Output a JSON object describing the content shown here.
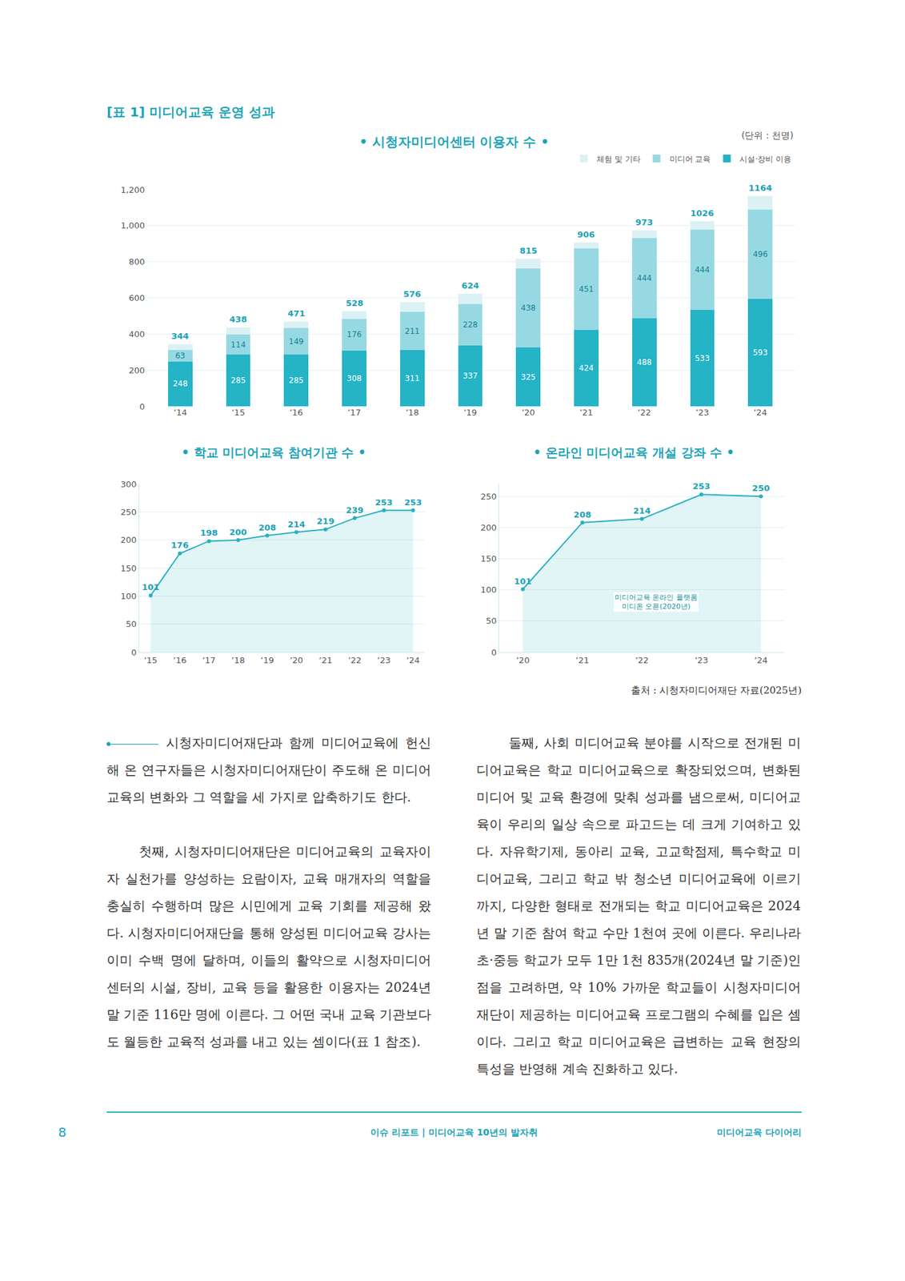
{
  "header": {
    "title": "[표 1] 미디어교육 운영 성과"
  },
  "chart_data": [
    {
      "type": "bar",
      "title": "• 시청자미디어센터 이용자 수 •",
      "unit": "(단위 : 천명)",
      "stacked": true,
      "legend": "top right",
      "grid": true,
      "categories": [
        "’14",
        "’15",
        "’16",
        "’17",
        "’18",
        "’19",
        "’20",
        "’21",
        "’22",
        "’23",
        "’24"
      ],
      "series": [
        {
          "name": "시설·장비 이용",
          "color": "#25b3c6",
          "data_labels": true,
          "values": [
            248,
            285,
            285,
            308,
            311,
            337,
            325,
            424,
            488,
            533,
            593
          ]
        },
        {
          "name": "미디어 교육",
          "color": "#97d9e3",
          "data_labels": true,
          "values": [
            63,
            114,
            149,
            176,
            211,
            228,
            438,
            451,
            444,
            444,
            496
          ]
        },
        {
          "name": "체험 및 기타",
          "color": "#dcf1f4",
          "data_labels": false,
          "values": [
            33,
            39,
            37,
            44,
            54,
            59,
            52,
            31,
            41,
            49,
            75
          ]
        }
      ],
      "totals": [
        344,
        438,
        471,
        528,
        576,
        624,
        815,
        906,
        973,
        1026,
        1164
      ],
      "ylim": [
        0,
        1200
      ],
      "yticks": [
        0,
        200,
        400,
        600,
        800,
        {
          "value": 1000,
          "label": "1,000"
        },
        {
          "value": 1200,
          "label": "1,200"
        }
      ]
    },
    {
      "type": "line",
      "title": "• 학교 미디어교육 참여기관 수 •",
      "color": "#2ab0c2",
      "grid": true,
      "data_labels": true,
      "categories": [
        "’15",
        "’16",
        "’17",
        "’18",
        "’19",
        "’20",
        "’21",
        "’22",
        "’23",
        "’24"
      ],
      "values": [
        101,
        176,
        198,
        200,
        208,
        214,
        219,
        239,
        253,
        253
      ],
      "ylim": [
        0,
        300
      ],
      "yticks": [
        0,
        50,
        100,
        150,
        200,
        250,
        300
      ]
    },
    {
      "type": "line",
      "title": "• 온라인 미디어교육 개설 강좌 수 •",
      "color": "#2ab0c2",
      "grid": true,
      "data_labels": true,
      "categories": [
        "’20",
        "’21",
        "’22",
        "’23",
        "’24"
      ],
      "values": [
        101,
        208,
        214,
        253,
        250
      ],
      "annotation": [
        "미디어교육 온라인 플랫폼",
        "미디온 오픈(2020년)"
      ],
      "ylim": [
        0,
        270
      ],
      "yticks": [
        0,
        50,
        100,
        150,
        200,
        250
      ]
    }
  ],
  "source": "출처 : 시청자미디어재단 자료(2025년)",
  "body": {
    "left": [
      "시청자미디어재단과 함께 미디어교육에 헌신해 온 연구자들은 시청자미디어재단이 주도해 온 미디어교육의 변화와 그 역할을 세 가지로 압축하기도 한다.",
      "첫째, 시청자미디어재단은 미디어교육의 교육자이자 실천가를 양성하는 요람이자, 교육 매개자의 역할을 충실히 수행하며 많은 시민에게 교육 기회를 제공해 왔다. 시청자미디어재단을 통해 양성된 미디어교육 강사는 이미 수백 명에 달하며, 이들의 활약으로 시청자미디어센터의 시설, 장비, 교육 등을 활용한 이용자는 2024년 말 기준 116만 명에 이른다. 그 어떤 국내 교육 기관보다도 월등한 교육적 성과를 내고 있는 셈이다(표 1 참조)."
    ],
    "right": [
      "둘째, 사회 미디어교육 분야를 시작으로 전개된 미디어교육은 학교 미디어교육으로 확장되었으며, 변화된 미디어 및 교육 환경에 맞춰 성과를 냄으로써, 미디어교육이 우리의 일상 속으로 파고드는 데 크게 기여하고 있다. 자유학기제, 동아리 교육, 고교학점제, 특수학교 미디어교육, 그리고 학교 밖 청소년 미디어교육에 이르기까지, 다양한 형태로 전개되는 학교 미디어교육은 2024년 말 기준 참여 학교 수만 1천여 곳에 이른다. 우리나라 초·중등 학교가 모두 1만 1천 835개(2024년 말 기준)인 점을 고려하면, 약 10% 가까운 학교들이 시청자미디어재단이 제공하는 미디어교육 프로그램의 수혜를 입은 셈이다. 그리고 학교 미디어교육은 급변하는 교육 현장의 특성을 반영해 계속 진화하고 있다."
    ]
  },
  "footer": {
    "page": "8",
    "center": "이슈 리포트 | 미디어교육 10년의 발자취",
    "right": "미디어교육 다이어리"
  }
}
